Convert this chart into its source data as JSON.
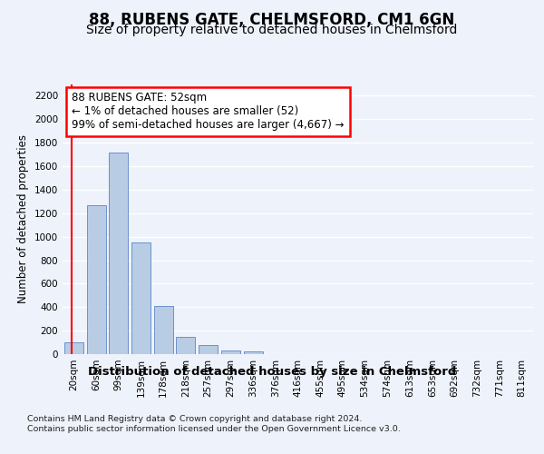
{
  "title": "88, RUBENS GATE, CHELMSFORD, CM1 6GN",
  "subtitle": "Size of property relative to detached houses in Chelmsford",
  "xlabel": "Distribution of detached houses by size in Chelmsford",
  "ylabel": "Number of detached properties",
  "categories": [
    "20sqm",
    "60sqm",
    "99sqm",
    "139sqm",
    "178sqm",
    "218sqm",
    "257sqm",
    "297sqm",
    "336sqm",
    "376sqm",
    "416sqm",
    "455sqm",
    "495sqm",
    "534sqm",
    "574sqm",
    "613sqm",
    "653sqm",
    "692sqm",
    "732sqm",
    "771sqm",
    "811sqm"
  ],
  "values": [
    100,
    1270,
    1720,
    950,
    410,
    150,
    75,
    30,
    20,
    0,
    0,
    0,
    0,
    0,
    0,
    0,
    0,
    0,
    0,
    0,
    0
  ],
  "bar_color": "#b8cce4",
  "bar_edge_color": "#4472c4",
  "annotation_text": "88 RUBENS GATE: 52sqm\n← 1% of detached houses are smaller (52)\n99% of semi-detached houses are larger (4,667) →",
  "annotation_box_color": "#ffffff",
  "annotation_box_edge_color": "#ff0000",
  "vline_color": "#ff0000",
  "ylim": [
    0,
    2300
  ],
  "yticks": [
    0,
    200,
    400,
    600,
    800,
    1000,
    1200,
    1400,
    1600,
    1800,
    2000,
    2200
  ],
  "background_color": "#eef2fb",
  "grid_color": "#ffffff",
  "footer": "Contains HM Land Registry data © Crown copyright and database right 2024.\nContains public sector information licensed under the Open Government Licence v3.0.",
  "title_fontsize": 12,
  "subtitle_fontsize": 10,
  "xlabel_fontsize": 9.5,
  "ylabel_fontsize": 8.5,
  "tick_fontsize": 7.5,
  "annotation_fontsize": 8.5
}
